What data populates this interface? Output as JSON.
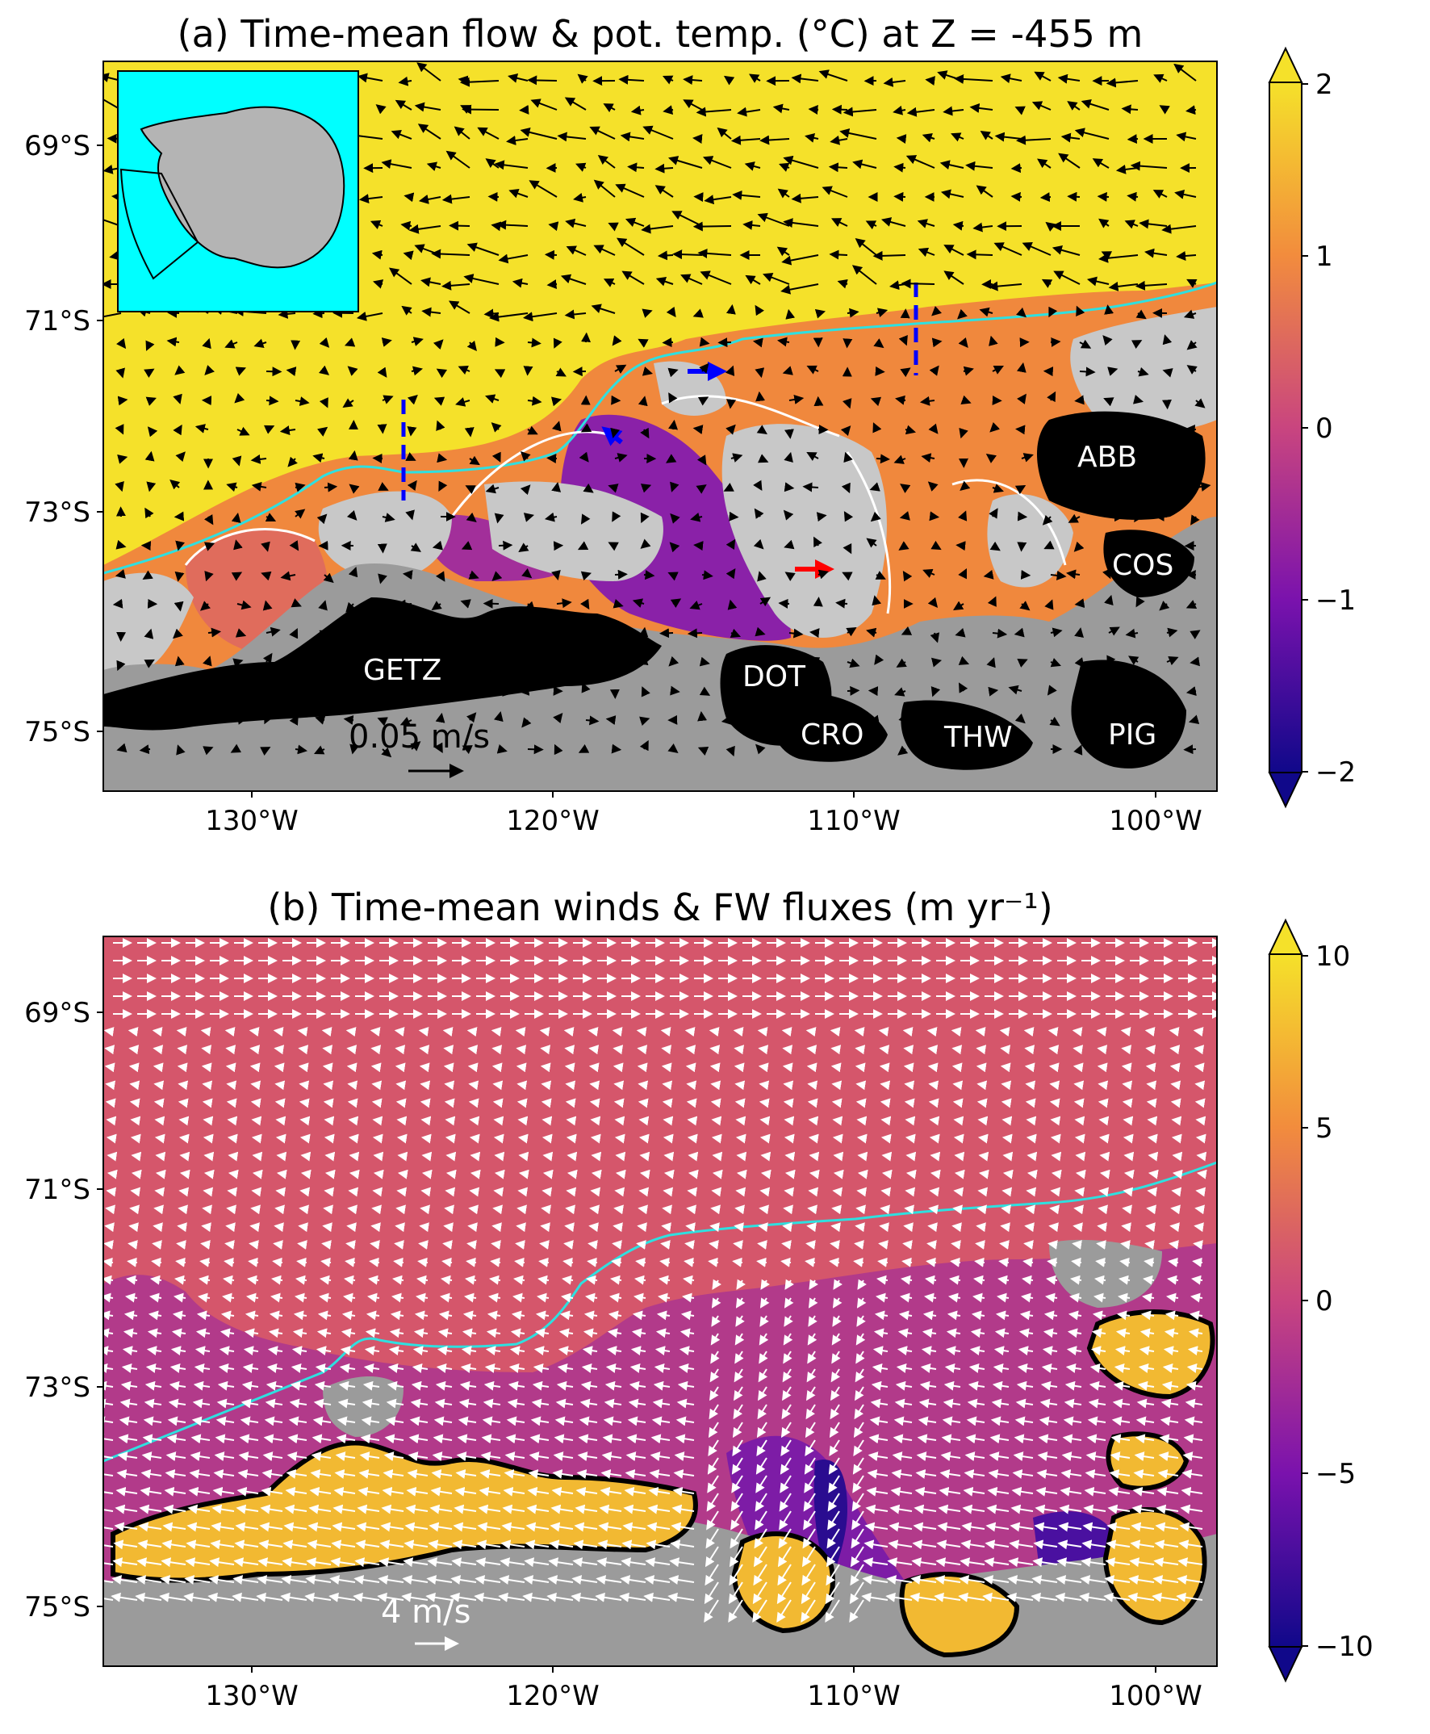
{
  "chart_data": [
    {
      "type": "heatmap",
      "title": "(a) Time-mean flow & pot. temp. (°C) at Z = -455 m",
      "x_ticks": [
        "130°W",
        "120°W",
        "110°W",
        "100°W"
      ],
      "y_ticks": [
        "69°S",
        "71°S",
        "73°S",
        "75°S"
      ],
      "xlim": [
        -135,
        -98
      ],
      "ylim": [
        -75.6,
        -68.2
      ],
      "colorbar": {
        "ticks": [
          "2",
          "1",
          "0",
          "−1",
          "−2"
        ],
        "range": [
          -2,
          2
        ]
      },
      "ice_shelf_labels": [
        "GETZ",
        "DOT",
        "CRO",
        "THW",
        "PIG",
        "ABB",
        "COS"
      ],
      "vector_key": "0.05 m/s"
    },
    {
      "type": "heatmap",
      "title": "(b) Time-mean winds & FW fluxes (m yr⁻¹)",
      "x_ticks": [
        "130°W",
        "120°W",
        "110°W",
        "100°W"
      ],
      "y_ticks": [
        "69°S",
        "71°S",
        "73°S",
        "75°S"
      ],
      "xlim": [
        -135,
        -98
      ],
      "ylim": [
        -75.6,
        -68.2
      ],
      "colorbar": {
        "ticks": [
          "10",
          "5",
          "0",
          "−5",
          "−10"
        ],
        "range": [
          -10,
          10
        ]
      },
      "vector_key": "4 m/s"
    }
  ],
  "colors": {
    "warm": "#f5e12a",
    "orange": "#f28c3d",
    "pink": "#d5566b",
    "purple": "#8a21a8",
    "deep": "#1b0c8a",
    "ice_shelf": "#000000",
    "land": "#9b9b9b",
    "grounded": "#c8c8c8",
    "shelf_break": "#2ee0e0",
    "inset_ocean": "#00ffff"
  }
}
